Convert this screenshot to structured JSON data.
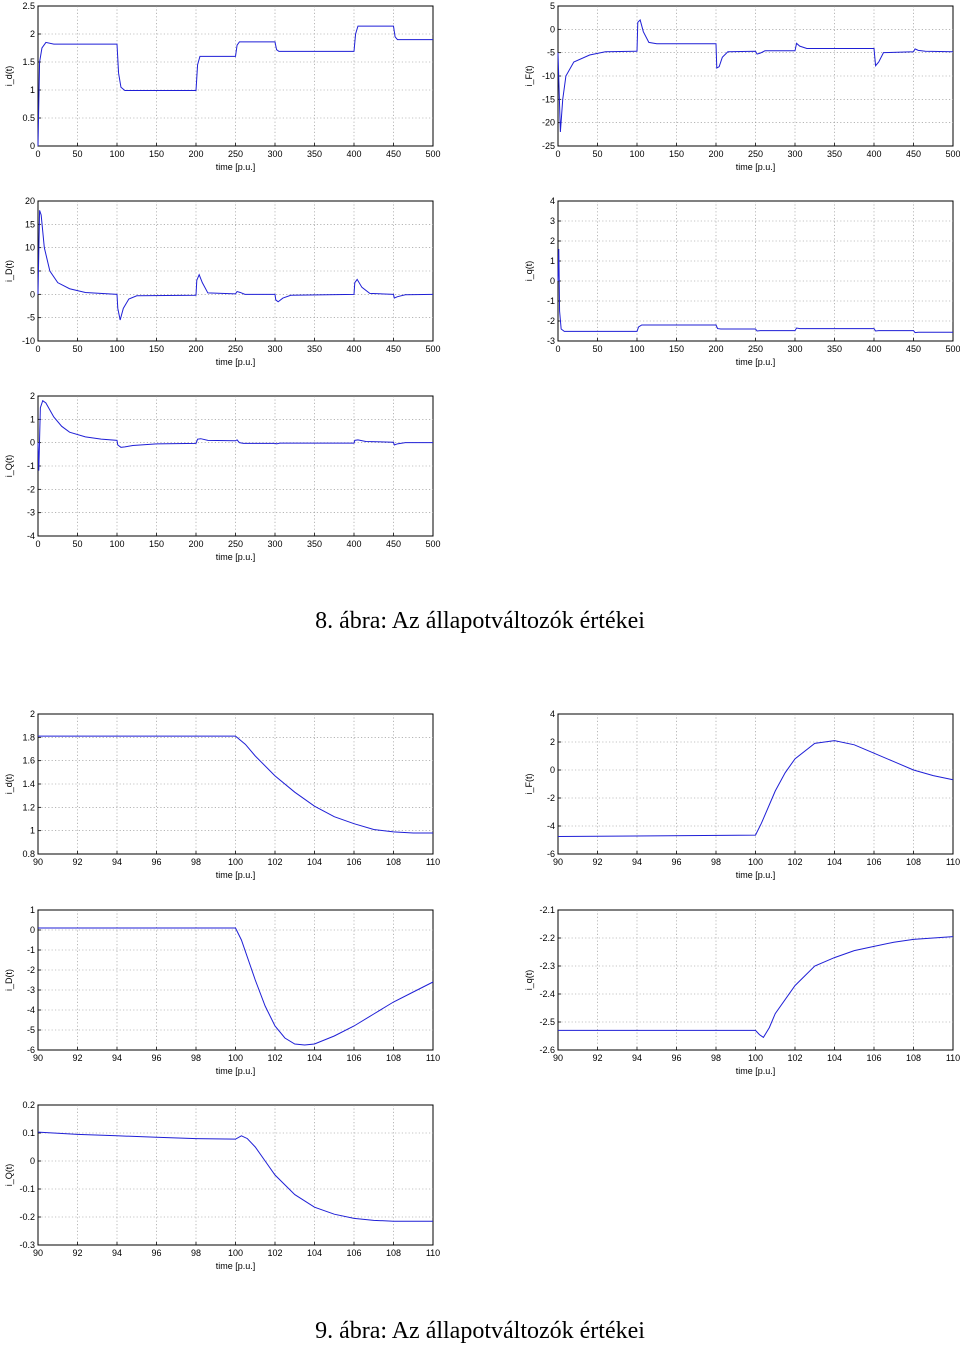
{
  "captions": [
    "8. ábra: Az állapotváltozók értékei",
    "9. ábra: Az állapotváltozók értékei"
  ],
  "line_color": "#1f1fd6",
  "chart_data": [
    {
      "type": "line",
      "xlabel": "time [p.u.]",
      "ylabel": "i_d(t)",
      "xlim": [
        0,
        500
      ],
      "ylim": [
        0,
        2.5
      ],
      "xticks": [
        0,
        50,
        100,
        150,
        200,
        250,
        300,
        350,
        400,
        450,
        500
      ],
      "yticks": [
        0,
        0.5,
        1,
        1.5,
        2,
        2.5
      ],
      "grid": true,
      "series": [
        {
          "x": [
            0,
            2,
            5,
            10,
            20,
            30,
            100,
            102,
            105,
            110,
            200,
            202,
            205,
            210,
            250,
            252,
            255,
            260,
            300,
            302,
            305,
            310,
            400,
            402,
            405,
            410,
            450,
            452,
            455,
            460,
            500
          ],
          "y": [
            0,
            1.5,
            1.75,
            1.85,
            1.82,
            1.82,
            1.82,
            1.3,
            1.05,
            0.99,
            0.99,
            1.45,
            1.6,
            1.6,
            1.6,
            1.8,
            1.86,
            1.86,
            1.86,
            1.72,
            1.69,
            1.69,
            1.69,
            2.0,
            2.14,
            2.14,
            2.14,
            1.95,
            1.9,
            1.9,
            1.9
          ]
        }
      ]
    },
    {
      "type": "line",
      "xlabel": "time [p.u.]",
      "ylabel": "i_F(t)",
      "xlim": [
        0,
        500
      ],
      "ylim": [
        -25,
        5
      ],
      "xticks": [
        0,
        50,
        100,
        150,
        200,
        250,
        300,
        350,
        400,
        450,
        500
      ],
      "yticks": [
        -25,
        -20,
        -15,
        -10,
        -5,
        0,
        5
      ],
      "grid": true,
      "series": [
        {
          "x": [
            0,
            3,
            6,
            10,
            20,
            40,
            60,
            100,
            101,
            104,
            108,
            115,
            125,
            200,
            201,
            204,
            208,
            215,
            250,
            252,
            256,
            262,
            300,
            302,
            306,
            315,
            400,
            402,
            406,
            412,
            450,
            452,
            456,
            465,
            500
          ],
          "y": [
            -5,
            -22,
            -15,
            -10,
            -7,
            -5.5,
            -4.8,
            -4.7,
            1.5,
            2.0,
            -0.5,
            -2.8,
            -3.1,
            -3.1,
            -8.3,
            -8.0,
            -6.0,
            -4.8,
            -4.7,
            -5.3,
            -5.1,
            -4.6,
            -4.6,
            -3.0,
            -3.6,
            -4.1,
            -4.1,
            -7.8,
            -7.0,
            -5.0,
            -4.8,
            -4.2,
            -4.5,
            -4.7,
            -4.8
          ]
        }
      ]
    },
    {
      "type": "line",
      "xlabel": "time [p.u.]",
      "ylabel": "i_D(t)",
      "xlim": [
        0,
        500
      ],
      "ylim": [
        -10,
        20
      ],
      "xticks": [
        0,
        50,
        100,
        150,
        200,
        250,
        300,
        350,
        400,
        450,
        500
      ],
      "yticks": [
        -10,
        -5,
        0,
        5,
        10,
        15,
        20
      ],
      "grid": true,
      "series": [
        {
          "x": [
            0,
            2,
            4,
            8,
            15,
            25,
            40,
            60,
            100,
            101,
            104,
            108,
            115,
            125,
            200,
            201,
            204,
            208,
            215,
            250,
            252,
            256,
            262,
            300,
            301,
            304,
            310,
            320,
            400,
            401,
            404,
            410,
            420,
            450,
            451,
            455,
            465,
            500
          ],
          "y": [
            0,
            18,
            17,
            10,
            5,
            2.5,
            1.2,
            0.4,
            0,
            -3,
            -5.5,
            -3,
            -1,
            -0.3,
            -0.2,
            3,
            4.2,
            2.5,
            0.3,
            0.1,
            0.6,
            0.4,
            0,
            0,
            -1.2,
            -1.6,
            -0.8,
            -0.2,
            0,
            2.5,
            3.2,
            1.5,
            0.2,
            0,
            -0.8,
            -0.5,
            -0.1,
            0
          ]
        }
      ]
    },
    {
      "type": "line",
      "xlabel": "time [p.u.]",
      "ylabel": "i_q(t)",
      "xlim": [
        0,
        500
      ],
      "ylim": [
        -3,
        4
      ],
      "xticks": [
        0,
        50,
        100,
        150,
        200,
        250,
        300,
        350,
        400,
        450,
        500
      ],
      "yticks": [
        -3,
        -2,
        -1,
        0,
        1,
        2,
        3,
        4
      ],
      "grid": true,
      "series": [
        {
          "x": [
            0,
            1,
            2,
            4,
            8,
            100,
            102,
            106,
            200,
            202,
            206,
            250,
            252,
            256,
            300,
            302,
            306,
            400,
            402,
            406,
            450,
            452,
            456,
            500
          ],
          "y": [
            0,
            1.6,
            -1.5,
            -2.4,
            -2.52,
            -2.52,
            -2.3,
            -2.2,
            -2.2,
            -2.38,
            -2.4,
            -2.4,
            -2.5,
            -2.48,
            -2.48,
            -2.35,
            -2.38,
            -2.38,
            -2.5,
            -2.48,
            -2.48,
            -2.58,
            -2.56,
            -2.56
          ]
        }
      ]
    },
    {
      "type": "line",
      "xlabel": "time [p.u.]",
      "ylabel": "i_Q(t)",
      "xlim": [
        0,
        500
      ],
      "ylim": [
        -4,
        2
      ],
      "xticks": [
        0,
        50,
        100,
        150,
        200,
        250,
        300,
        350,
        400,
        450,
        500
      ],
      "yticks": [
        -4,
        -3,
        -2,
        -1,
        0,
        1,
        2
      ],
      "grid": true,
      "series": [
        {
          "x": [
            0,
            1,
            3,
            6,
            10,
            15,
            20,
            30,
            40,
            60,
            80,
            100,
            101,
            105,
            110,
            120,
            150,
            200,
            202,
            206,
            215,
            250,
            252,
            255,
            260,
            300,
            302,
            306,
            350,
            400,
            401,
            405,
            415,
            450,
            451,
            455,
            465,
            500
          ],
          "y": [
            0,
            -1.2,
            1.5,
            1.8,
            1.7,
            1.4,
            1.1,
            0.7,
            0.45,
            0.25,
            0.15,
            0.1,
            -0.1,
            -0.2,
            -0.18,
            -0.12,
            -0.05,
            -0.03,
            0.15,
            0.17,
            0.1,
            0.08,
            0.12,
            0,
            -0.03,
            -0.03,
            -0.05,
            -0.02,
            -0.02,
            -0.02,
            0.1,
            0.12,
            0.05,
            0.02,
            -0.1,
            -0.05,
            0,
            0
          ]
        }
      ]
    },
    {
      "type": "line",
      "xlabel": "time [p.u.]",
      "ylabel": "i_d(t)",
      "xlim": [
        90,
        110
      ],
      "ylim": [
        0.8,
        2
      ],
      "xticks": [
        90,
        92,
        94,
        96,
        98,
        100,
        102,
        104,
        106,
        108,
        110
      ],
      "yticks": [
        0.8,
        1,
        1.2,
        1.4,
        1.6,
        1.8,
        2
      ],
      "grid": true,
      "series": [
        {
          "x": [
            90,
            100,
            100.5,
            101,
            102,
            103,
            104,
            105,
            106,
            107,
            108,
            109,
            110
          ],
          "y": [
            1.81,
            1.81,
            1.74,
            1.64,
            1.47,
            1.33,
            1.21,
            1.12,
            1.06,
            1.01,
            0.99,
            0.98,
            0.98
          ]
        }
      ]
    },
    {
      "type": "line",
      "xlabel": "time [p.u.]",
      "ylabel": "i_F(t)",
      "xlim": [
        90,
        110
      ],
      "ylim": [
        -6,
        4
      ],
      "xticks": [
        90,
        92,
        94,
        96,
        98,
        100,
        102,
        104,
        106,
        108,
        110
      ],
      "yticks": [
        -6,
        -4,
        -2,
        0,
        2,
        4
      ],
      "grid": true,
      "series": [
        {
          "x": [
            90,
            100,
            100.3,
            101,
            101.5,
            102,
            103,
            104,
            105,
            106,
            107,
            108,
            109,
            110
          ],
          "y": [
            -4.75,
            -4.65,
            -3.8,
            -1.5,
            -0.2,
            0.8,
            1.9,
            2.1,
            1.8,
            1.2,
            0.6,
            0,
            -0.4,
            -0.7
          ]
        }
      ]
    },
    {
      "type": "line",
      "xlabel": "time [p.u.]",
      "ylabel": "i_D(t)",
      "xlim": [
        90,
        110
      ],
      "ylim": [
        -6,
        1
      ],
      "xticks": [
        90,
        92,
        94,
        96,
        98,
        100,
        102,
        104,
        106,
        108,
        110
      ],
      "yticks": [
        -6,
        -5,
        -4,
        -3,
        -2,
        -1,
        0,
        1
      ],
      "grid": true,
      "series": [
        {
          "x": [
            90,
            100,
            100.3,
            101,
            101.5,
            102,
            102.5,
            103,
            103.5,
            104,
            105,
            106,
            107,
            108,
            109,
            110
          ],
          "y": [
            0.1,
            0.1,
            -0.5,
            -2.5,
            -3.8,
            -4.8,
            -5.4,
            -5.7,
            -5.75,
            -5.7,
            -5.3,
            -4.8,
            -4.2,
            -3.6,
            -3.1,
            -2.6
          ]
        }
      ]
    },
    {
      "type": "line",
      "xlabel": "time [p.u.]",
      "ylabel": "i_q(t)",
      "xlim": [
        90,
        110
      ],
      "ylim": [
        -2.6,
        -2.1
      ],
      "xticks": [
        90,
        92,
        94,
        96,
        98,
        100,
        102,
        104,
        106,
        108,
        110
      ],
      "yticks": [
        -2.6,
        -2.5,
        -2.4,
        -2.3,
        -2.2,
        -2.1
      ],
      "grid": true,
      "series": [
        {
          "x": [
            90,
            100,
            100.2,
            100.4,
            100.7,
            101,
            102,
            103,
            104,
            105,
            106,
            107,
            108,
            109,
            110
          ],
          "y": [
            -2.53,
            -2.53,
            -2.545,
            -2.555,
            -2.52,
            -2.47,
            -2.37,
            -2.3,
            -2.27,
            -2.245,
            -2.23,
            -2.215,
            -2.205,
            -2.2,
            -2.195
          ]
        }
      ]
    },
    {
      "type": "line",
      "xlabel": "time [p.u.]",
      "ylabel": "i_Q(t)",
      "xlim": [
        90,
        110
      ],
      "ylim": [
        -0.3,
        0.2
      ],
      "xticks": [
        90,
        92,
        94,
        96,
        98,
        100,
        102,
        104,
        106,
        108,
        110
      ],
      "yticks": [
        -0.3,
        -0.2,
        -0.1,
        0,
        0.1,
        0.2
      ],
      "grid": true,
      "series": [
        {
          "x": [
            90,
            92,
            94,
            96,
            98,
            100,
            100.3,
            100.6,
            101,
            101.5,
            102,
            103,
            104,
            105,
            106,
            107,
            108,
            109,
            110
          ],
          "y": [
            0.103,
            0.095,
            0.09,
            0.085,
            0.08,
            0.078,
            0.09,
            0.08,
            0.05,
            0.0,
            -0.05,
            -0.12,
            -0.165,
            -0.19,
            -0.205,
            -0.212,
            -0.215,
            -0.215,
            -0.215
          ]
        }
      ]
    }
  ]
}
